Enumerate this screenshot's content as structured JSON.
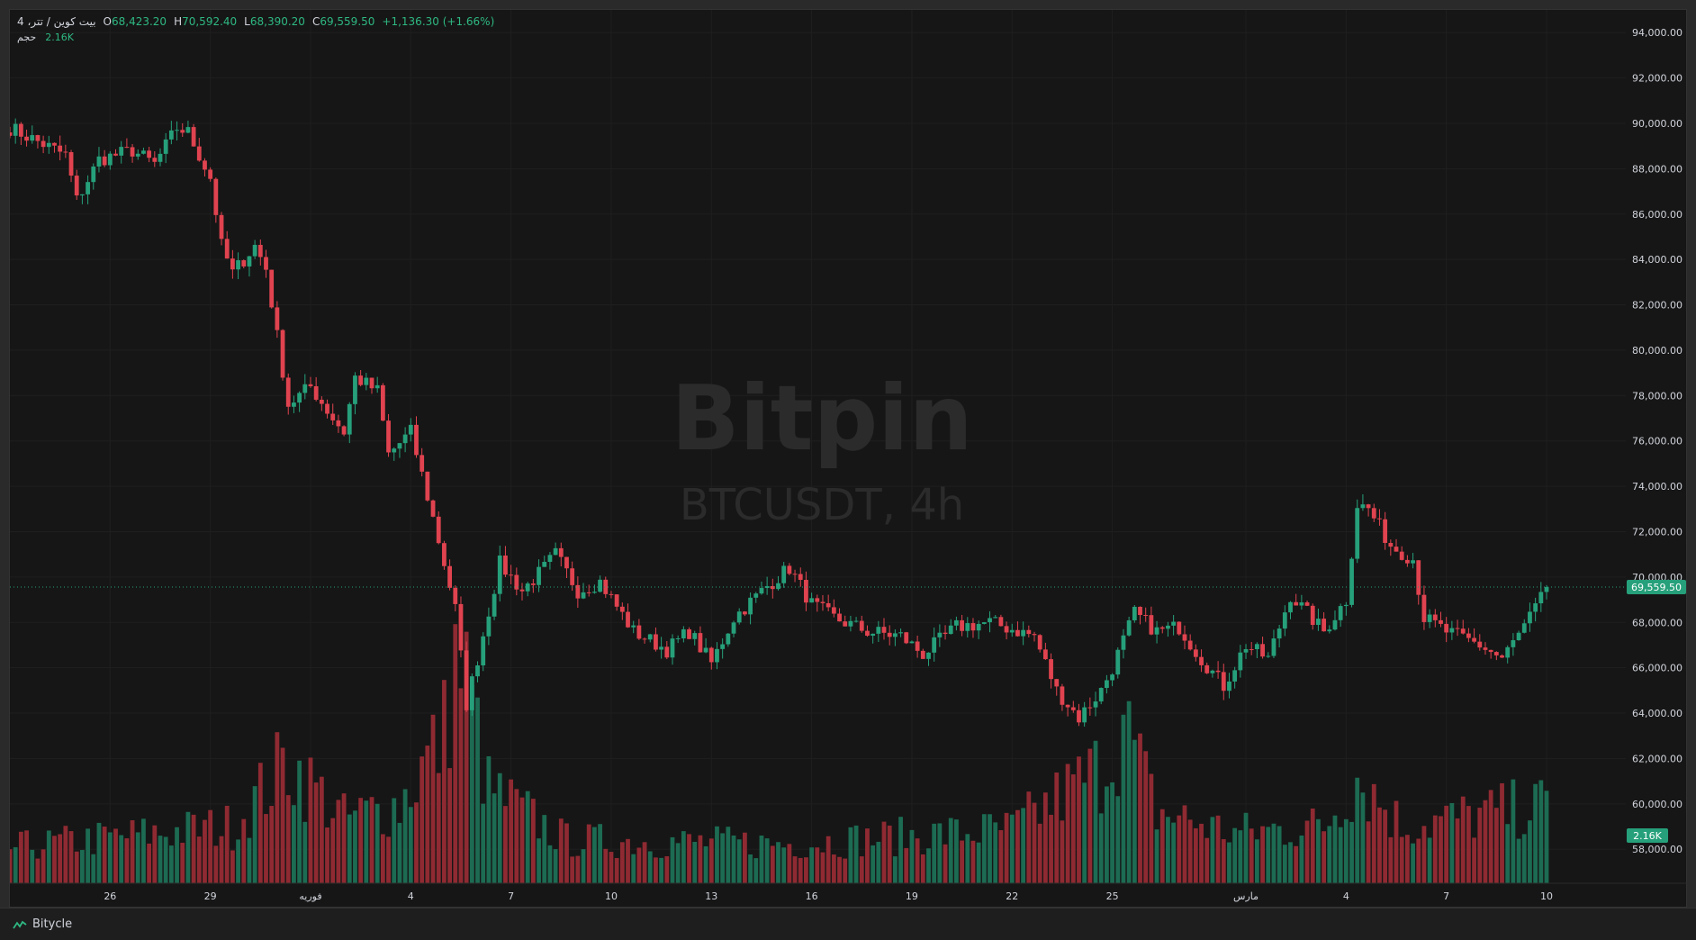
{
  "header": {
    "symbol": "بیت کوین / تتر، 4",
    "open_label": "O",
    "open": "68,423.20",
    "high_label": "H",
    "high": "70,592.40",
    "low_label": "L",
    "low": "68,390.20",
    "close_label": "C",
    "close": "69,559.50",
    "change": "+1,136.30 (+1.66%)"
  },
  "volume_legend": {
    "name": "حجم",
    "value": "2.16K"
  },
  "watermark": {
    "brand": "Bitpin",
    "ticker": "BTCUSDT, 4h"
  },
  "footer": {
    "brand": "Bitycle"
  },
  "colors": {
    "up": "#26a07a",
    "down": "#e0434f",
    "up_vol": "#1c6b52",
    "down_vol": "#8f2a32",
    "background": "#161616"
  },
  "chart_data": {
    "type": "candlestick",
    "ylim": [
      56500,
      95000
    ],
    "y_ticks": [
      "94,000.00",
      "92,000.00",
      "90,000.00",
      "88,000.00",
      "86,000.00",
      "84,000.00",
      "82,000.00",
      "80,000.00",
      "78,000.00",
      "76,000.00",
      "74,000.00",
      "72,000.00",
      "70,000.00",
      "68,000.00",
      "66,000.00",
      "64,000.00",
      "62,000.00",
      "60,000.00",
      "58,000.00"
    ],
    "y_tick_values": [
      94000,
      92000,
      90000,
      88000,
      86000,
      84000,
      82000,
      80000,
      78000,
      76000,
      74000,
      72000,
      70000,
      68000,
      66000,
      64000,
      62000,
      60000,
      58000
    ],
    "x_ticks": [
      {
        "label": "26",
        "index": 18
      },
      {
        "label": "29",
        "index": 36
      },
      {
        "label": "فوریه",
        "index": 54
      },
      {
        "label": "4",
        "index": 72
      },
      {
        "label": "7",
        "index": 90
      },
      {
        "label": "10",
        "index": 108
      },
      {
        "label": "13",
        "index": 126
      },
      {
        "label": "16",
        "index": 144
      },
      {
        "label": "19",
        "index": 162
      },
      {
        "label": "22",
        "index": 180
      },
      {
        "label": "25",
        "index": 198
      },
      {
        "label": "مارس",
        "index": 222
      },
      {
        "label": "4",
        "index": 240
      },
      {
        "label": "7",
        "index": 258
      },
      {
        "label": "10",
        "index": 276
      }
    ],
    "anchors": [
      [
        0,
        89800
      ],
      [
        10,
        88600
      ],
      [
        12,
        86600
      ],
      [
        16,
        88400
      ],
      [
        22,
        88800
      ],
      [
        26,
        88200
      ],
      [
        30,
        89800
      ],
      [
        32,
        89600
      ],
      [
        36,
        87600
      ],
      [
        38,
        84600
      ],
      [
        40,
        83400
      ],
      [
        44,
        84600
      ],
      [
        46,
        83600
      ],
      [
        50,
        77600
      ],
      [
        54,
        78400
      ],
      [
        58,
        77000
      ],
      [
        60,
        76400
      ],
      [
        62,
        78800
      ],
      [
        66,
        78200
      ],
      [
        68,
        75400
      ],
      [
        72,
        76400
      ],
      [
        76,
        72600
      ],
      [
        80,
        68600
      ],
      [
        82,
        64400
      ],
      [
        84,
        66400
      ],
      [
        88,
        70600
      ],
      [
        92,
        69400
      ],
      [
        96,
        70400
      ],
      [
        98,
        71000
      ],
      [
        102,
        69400
      ],
      [
        106,
        69800
      ],
      [
        112,
        67600
      ],
      [
        118,
        66800
      ],
      [
        122,
        67600
      ],
      [
        126,
        66200
      ],
      [
        130,
        68200
      ],
      [
        136,
        69600
      ],
      [
        140,
        70400
      ],
      [
        144,
        68800
      ],
      [
        148,
        68200
      ],
      [
        154,
        67600
      ],
      [
        160,
        67400
      ],
      [
        164,
        66600
      ],
      [
        170,
        67800
      ],
      [
        176,
        68000
      ],
      [
        184,
        67400
      ],
      [
        188,
        65000
      ],
      [
        192,
        63800
      ],
      [
        196,
        65000
      ],
      [
        198,
        66000
      ],
      [
        202,
        68400
      ],
      [
        206,
        67600
      ],
      [
        210,
        67800
      ],
      [
        214,
        66400
      ],
      [
        218,
        65200
      ],
      [
        222,
        67000
      ],
      [
        226,
        66400
      ],
      [
        230,
        69200
      ],
      [
        236,
        67600
      ],
      [
        240,
        69000
      ],
      [
        242,
        73200
      ],
      [
        244,
        73000
      ],
      [
        248,
        71400
      ],
      [
        252,
        70800
      ],
      [
        254,
        68200
      ],
      [
        258,
        67600
      ],
      [
        264,
        67000
      ],
      [
        268,
        66400
      ],
      [
        272,
        67800
      ],
      [
        275,
        69000
      ],
      [
        276,
        69559
      ]
    ],
    "volume_anchors": [
      [
        0,
        1.0
      ],
      [
        20,
        1.3
      ],
      [
        40,
        1.6
      ],
      [
        50,
        3.4
      ],
      [
        60,
        1.8
      ],
      [
        70,
        2.2
      ],
      [
        78,
        4.2
      ],
      [
        80,
        6.2
      ],
      [
        82,
        5.6
      ],
      [
        86,
        2.6
      ],
      [
        100,
        1.2
      ],
      [
        140,
        1.1
      ],
      [
        180,
        1.5
      ],
      [
        196,
        3.2
      ],
      [
        200,
        4.4
      ],
      [
        206,
        2.0
      ],
      [
        220,
        1.4
      ],
      [
        236,
        1.6
      ],
      [
        242,
        3.0
      ],
      [
        250,
        1.6
      ],
      [
        276,
        2.16
      ]
    ],
    "candle_count": 277,
    "last_price": 69559.5,
    "last_price_label": "69,559.50",
    "last_volume_label": "2.16K"
  }
}
